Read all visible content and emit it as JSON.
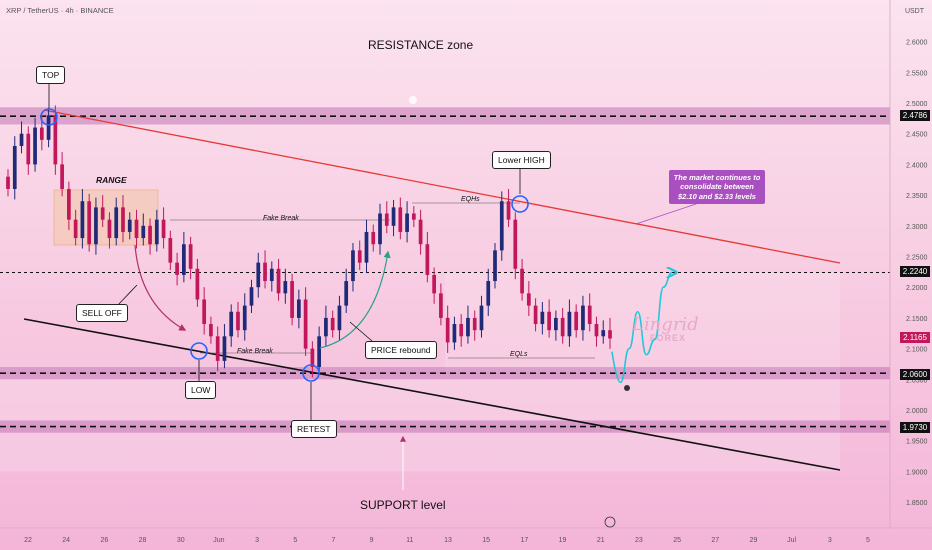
{
  "header": {
    "symbol": "XRP / TetherUS · 4h · BINANCE",
    "unit": "USDT"
  },
  "annotations": {
    "resistance_zone": "RESISTANCE zone",
    "support_level": "SUPPORT level",
    "top": "TOP",
    "range": "RANGE",
    "sell_off": "SELL OFF",
    "low": "LOW",
    "retest": "RETEST",
    "fake_break_1": "Fake Break",
    "fake_break_2": "Fake Break",
    "price_rebound": "PRICE rebound",
    "lower_high": "Lower HIGH",
    "eqhs": "EQHs",
    "eqls": "EQLs",
    "info_box": "The market continues to consolidate between $2.10 and $2.33 levels"
  },
  "watermark": {
    "name": "Lingrid",
    "sub": "FOREX"
  },
  "colors": {
    "bull": "#1f2a78",
    "bear": "#c2185b",
    "trendline_upper": "#e53935",
    "trendline_lower": "#111111",
    "zone": "#b55fa8",
    "highlight_circle": "#2962ff",
    "projection": "#26c6da",
    "rebound_arrow": "#2e9e8f",
    "selloff_arrow": "#b0306a"
  },
  "chart_data": {
    "type": "candlestick",
    "title": "XRP / TetherUS · 4h · BINANCE",
    "ylabel": "USDT",
    "ylim": [
      1.8,
      2.65
    ],
    "y_ticks": [
      1.85,
      1.9,
      1.95,
      2.0,
      2.05,
      2.1,
      2.15,
      2.2,
      2.25,
      2.3,
      2.35,
      2.4,
      2.45,
      2.5,
      2.55,
      2.6
    ],
    "y_tick_labels": [
      "1.8500",
      "1.9000",
      "1.9500",
      "2.0000",
      "2.0500",
      "2.1000",
      "2.1500",
      "2.2000",
      "2.2500",
      "2.3000",
      "2.3500",
      "2.4000",
      "2.4500",
      "2.5000",
      "2.5500",
      "2.6000"
    ],
    "x_tick_labels": [
      "22",
      "24",
      "26",
      "28",
      "30",
      "Jun",
      "3",
      "5",
      "7",
      "9",
      "11",
      "13",
      "15",
      "17",
      "19",
      "21",
      "23",
      "25",
      "27",
      "29",
      "Jul",
      "3",
      "5"
    ],
    "highlighted_levels": [
      {
        "price": 2.4786,
        "label": "2.4786",
        "style": "dashed",
        "tag_color": "#111111"
      },
      {
        "price": 2.224,
        "label": "2.2240",
        "style": "dotted",
        "tag_color": "#111111"
      },
      {
        "price": 2.06,
        "label": "2.0600",
        "style": "dashed",
        "tag_color": "#111111"
      },
      {
        "price": 1.973,
        "label": "1.9730",
        "style": "dashed",
        "tag_color": "#111111"
      }
    ],
    "current_price": {
      "price": 2.1165,
      "label": "2.1165",
      "color": "#c2185b"
    },
    "zones": [
      {
        "name": "resistance",
        "from": 2.465,
        "to": 2.493
      },
      {
        "name": "support-upper",
        "from": 2.05,
        "to": 2.07
      },
      {
        "name": "support-lower",
        "from": 1.963,
        "to": 1.983
      }
    ],
    "ohlc_path": [
      [
        2.38,
        2.36
      ],
      [
        2.36,
        2.43
      ],
      [
        2.43,
        2.45
      ],
      [
        2.45,
        2.4
      ],
      [
        2.4,
        2.46
      ],
      [
        2.46,
        2.44
      ],
      [
        2.44,
        2.48
      ],
      [
        2.48,
        2.4
      ],
      [
        2.4,
        2.36
      ],
      [
        2.36,
        2.31
      ],
      [
        2.31,
        2.28
      ],
      [
        2.28,
        2.34
      ],
      [
        2.34,
        2.27
      ],
      [
        2.27,
        2.33
      ],
      [
        2.33,
        2.31
      ],
      [
        2.31,
        2.28
      ],
      [
        2.28,
        2.33
      ],
      [
        2.33,
        2.29
      ],
      [
        2.29,
        2.31
      ],
      [
        2.31,
        2.28
      ],
      [
        2.28,
        2.3
      ],
      [
        2.3,
        2.27
      ],
      [
        2.27,
        2.31
      ],
      [
        2.31,
        2.28
      ],
      [
        2.28,
        2.24
      ],
      [
        2.24,
        2.22
      ],
      [
        2.22,
        2.27
      ],
      [
        2.27,
        2.23
      ],
      [
        2.23,
        2.18
      ],
      [
        2.18,
        2.14
      ],
      [
        2.14,
        2.12
      ],
      [
        2.12,
        2.08
      ],
      [
        2.08,
        2.12
      ],
      [
        2.12,
        2.16
      ],
      [
        2.16,
        2.13
      ],
      [
        2.13,
        2.17
      ],
      [
        2.17,
        2.2
      ],
      [
        2.2,
        2.24
      ],
      [
        2.24,
        2.21
      ],
      [
        2.21,
        2.23
      ],
      [
        2.23,
        2.19
      ],
      [
        2.19,
        2.21
      ],
      [
        2.21,
        2.15
      ],
      [
        2.15,
        2.18
      ],
      [
        2.18,
        2.1
      ],
      [
        2.1,
        2.07
      ],
      [
        2.07,
        2.12
      ],
      [
        2.12,
        2.15
      ],
      [
        2.15,
        2.13
      ],
      [
        2.13,
        2.17
      ],
      [
        2.17,
        2.21
      ],
      [
        2.21,
        2.26
      ],
      [
        2.26,
        2.24
      ],
      [
        2.24,
        2.29
      ],
      [
        2.29,
        2.27
      ],
      [
        2.27,
        2.32
      ],
      [
        2.32,
        2.3
      ],
      [
        2.3,
        2.33
      ],
      [
        2.33,
        2.29
      ],
      [
        2.29,
        2.32
      ],
      [
        2.32,
        2.31
      ],
      [
        2.31,
        2.27
      ],
      [
        2.27,
        2.22
      ],
      [
        2.22,
        2.19
      ],
      [
        2.19,
        2.15
      ],
      [
        2.15,
        2.11
      ],
      [
        2.11,
        2.14
      ],
      [
        2.14,
        2.12
      ],
      [
        2.12,
        2.15
      ],
      [
        2.15,
        2.13
      ],
      [
        2.13,
        2.17
      ],
      [
        2.17,
        2.21
      ],
      [
        2.21,
        2.26
      ],
      [
        2.26,
        2.34
      ],
      [
        2.34,
        2.31
      ],
      [
        2.31,
        2.23
      ],
      [
        2.23,
        2.19
      ],
      [
        2.19,
        2.17
      ],
      [
        2.17,
        2.14
      ],
      [
        2.14,
        2.16
      ],
      [
        2.16,
        2.13
      ],
      [
        2.13,
        2.15
      ],
      [
        2.15,
        2.12
      ],
      [
        2.12,
        2.16
      ],
      [
        2.16,
        2.13
      ],
      [
        2.13,
        2.17
      ],
      [
        2.17,
        2.14
      ],
      [
        2.14,
        2.12
      ],
      [
        2.12,
        2.13
      ],
      [
        2.13,
        2.1165
      ]
    ],
    "projection_path": [
      2.095,
      2.045,
      2.1,
      2.16,
      2.09,
      2.115,
      2.2,
      2.224
    ]
  }
}
